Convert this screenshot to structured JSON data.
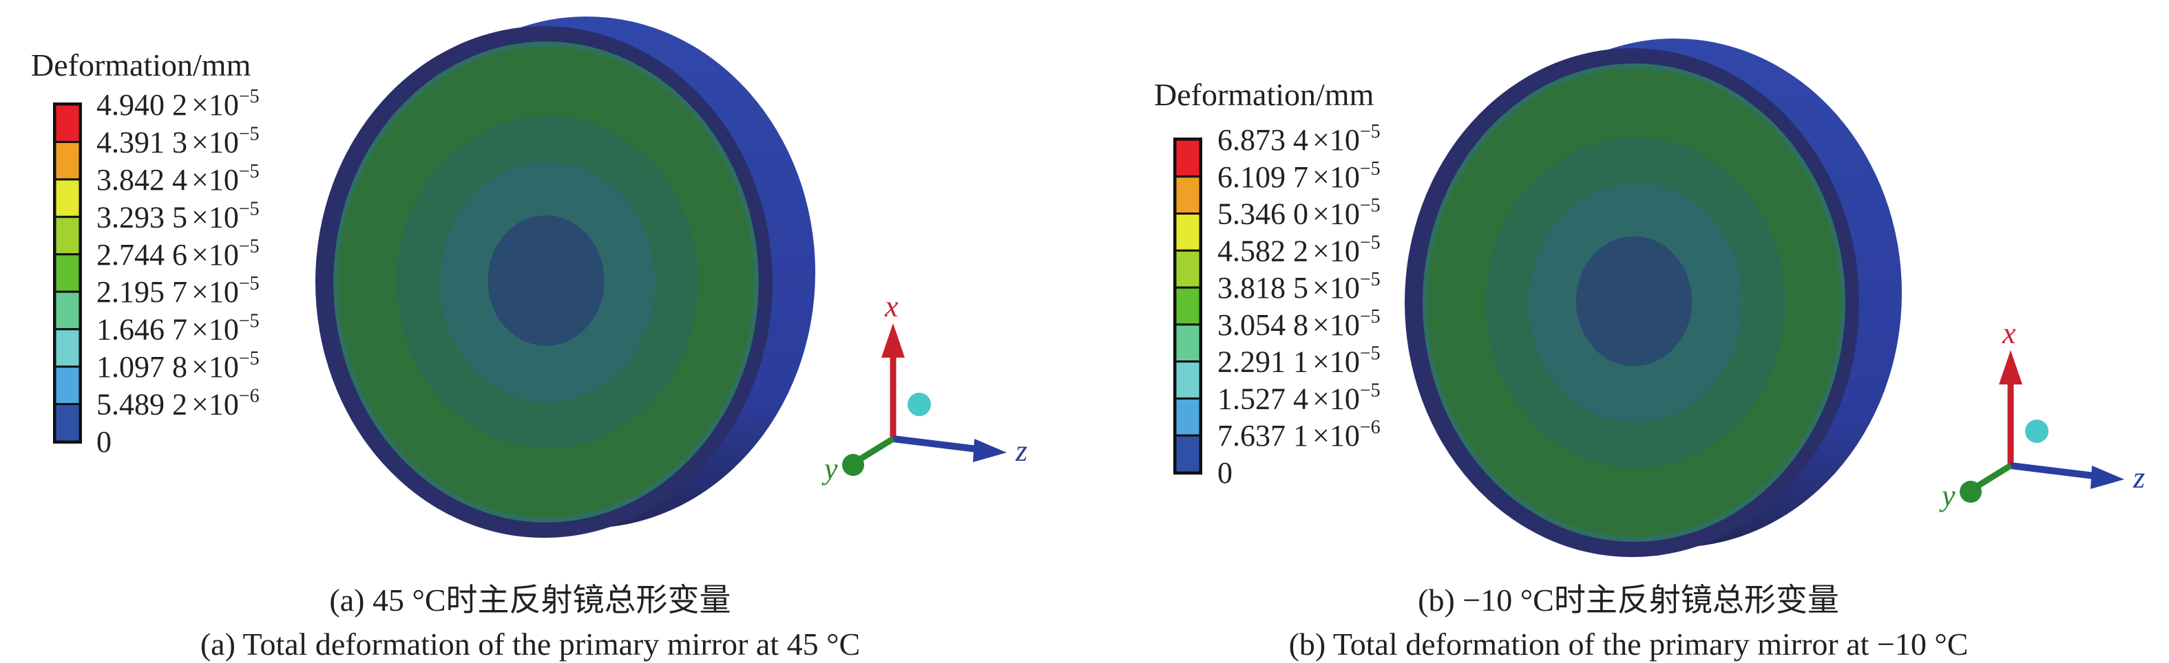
{
  "panels": [
    {
      "legend": {
        "title": "Deformation/mm",
        "labels": [
          {
            "mantissa": "4.940 2",
            "base": "×10",
            "exponent": "−5"
          },
          {
            "mantissa": "4.391 3",
            "base": "×10",
            "exponent": "−5"
          },
          {
            "mantissa": "3.842 4",
            "base": "×10",
            "exponent": "−5"
          },
          {
            "mantissa": "3.293 5",
            "base": "×10",
            "exponent": "−5"
          },
          {
            "mantissa": "2.744 6",
            "base": "×10",
            "exponent": "−5"
          },
          {
            "mantissa": "2.195 7",
            "base": "×10",
            "exponent": "−5"
          },
          {
            "mantissa": "1.646 7",
            "base": "×10",
            "exponent": "−5"
          },
          {
            "mantissa": "1.097 8",
            "base": "×10",
            "exponent": "−5"
          },
          {
            "mantissa": "5.489 2",
            "base": "×10",
            "exponent": "−6"
          },
          {
            "mantissa": "0",
            "base": "",
            "exponent": ""
          }
        ]
      },
      "axes": {
        "x": "x",
        "y": "y",
        "z": "z"
      },
      "caption_cn": "(a) 45 °C时主反射镜总形变量",
      "caption_en": "(a) Total deformation of the primary mirror at 45 °C"
    },
    {
      "legend": {
        "title": "Deformation/mm",
        "labels": [
          {
            "mantissa": "6.873 4",
            "base": "×10",
            "exponent": "−5"
          },
          {
            "mantissa": "6.109 7",
            "base": "×10",
            "exponent": "−5"
          },
          {
            "mantissa": "5.346 0",
            "base": "×10",
            "exponent": "−5"
          },
          {
            "mantissa": "4.582 2",
            "base": "×10",
            "exponent": "−5"
          },
          {
            "mantissa": "3.818 5",
            "base": "×10",
            "exponent": "−5"
          },
          {
            "mantissa": "3.054 8",
            "base": "×10",
            "exponent": "−5"
          },
          {
            "mantissa": "2.291 1",
            "base": "×10",
            "exponent": "−5"
          },
          {
            "mantissa": "1.527 4",
            "base": "×10",
            "exponent": "−5"
          },
          {
            "mantissa": "7.637 1",
            "base": "×10",
            "exponent": "−6"
          },
          {
            "mantissa": "0",
            "base": "",
            "exponent": ""
          }
        ]
      },
      "axes": {
        "x": "x",
        "y": "y",
        "z": "z"
      },
      "caption_cn": "(b) −10 °C时主反射镜总形变量",
      "caption_en": "(b) Total deformation of the primary mirror at −10 °C"
    }
  ],
  "colors": {
    "legend_bands": [
      "#e8202a",
      "#f0a024",
      "#e6ea30",
      "#a2d230",
      "#60c030",
      "#66cc96",
      "#72d0d0",
      "#50a8e0",
      "#3050a8"
    ],
    "mirror_rim": "#2e44a8",
    "mirror_edge": "#2a2f6a",
    "mirror_rings": [
      "#30703a",
      "#2e6a50",
      "#2f6868",
      "#2a4a70"
    ],
    "axis_x": "#c8202a",
    "axis_y": "#2a8a30",
    "axis_z": "#2a3ea0",
    "axis_ball": "#48c8c8"
  }
}
